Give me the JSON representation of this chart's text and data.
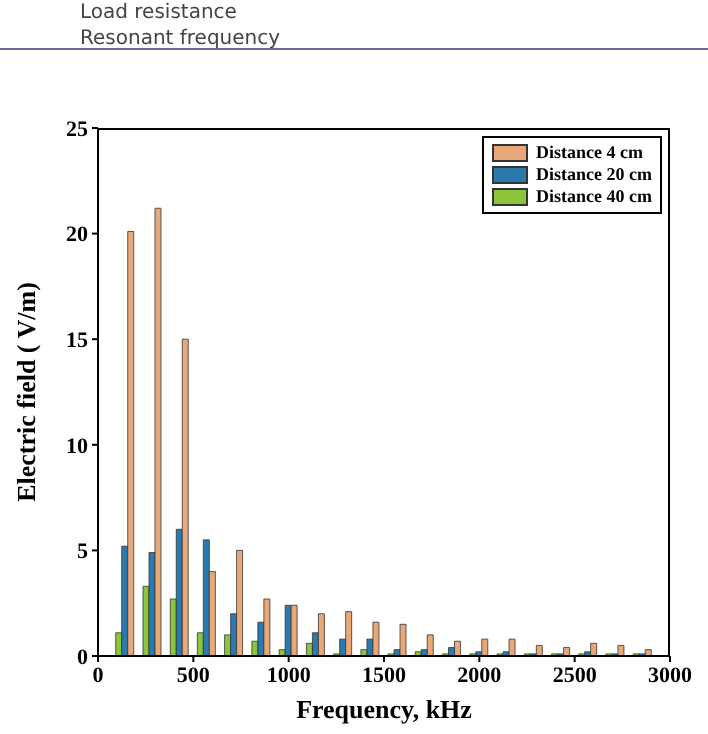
{
  "chart_data": {
    "type": "bar",
    "xlabel": "Frequency, kHz",
    "ylabel": "Electric field ( V/m)",
    "annotations": [
      "Load resistance",
      "Resonant frequency"
    ],
    "x": [
      143,
      286,
      429,
      571,
      714,
      857,
      1000,
      1143,
      1286,
      1429,
      1571,
      1714,
      1857,
      2000,
      2143,
      2286,
      2429,
      2571,
      2714,
      2857
    ],
    "series": [
      {
        "name": "Distance 4 cm",
        "color": "#e8a878",
        "values": [
          20.1,
          21.2,
          15,
          4,
          5,
          2.7,
          2.4,
          2,
          2.1,
          1.6,
          1.5,
          1,
          0.7,
          0.8,
          0.8,
          0.5,
          0.4,
          0.6,
          0.5,
          0.3
        ]
      },
      {
        "name": "Distance 20 cm",
        "color": "#2a7ab0",
        "values": [
          5.2,
          4.9,
          6,
          5.5,
          2,
          1.6,
          2.4,
          1.1,
          0.8,
          0.8,
          0.3,
          0.3,
          0.4,
          0.2,
          0.2,
          0.1,
          0.1,
          0.2,
          0.1,
          0.1
        ]
      },
      {
        "name": "Distance 40 cm",
        "color": "#8cc43c",
        "values": [
          1.1,
          3.3,
          2.7,
          1.1,
          1,
          0.7,
          0.3,
          0.6,
          0.1,
          0.3,
          0.1,
          0.2,
          0.1,
          0.1,
          0.1,
          0.1,
          0.1,
          0.1,
          0.1,
          0.1
        ]
      }
    ],
    "xlim": [
      0,
      3000
    ],
    "xticks": [
      0,
      500,
      1000,
      1500,
      2000,
      2500,
      3000
    ],
    "ylim": [
      0,
      25
    ],
    "yticks": [
      0,
      5,
      10,
      15,
      20,
      25
    ],
    "legend": "top right"
  }
}
